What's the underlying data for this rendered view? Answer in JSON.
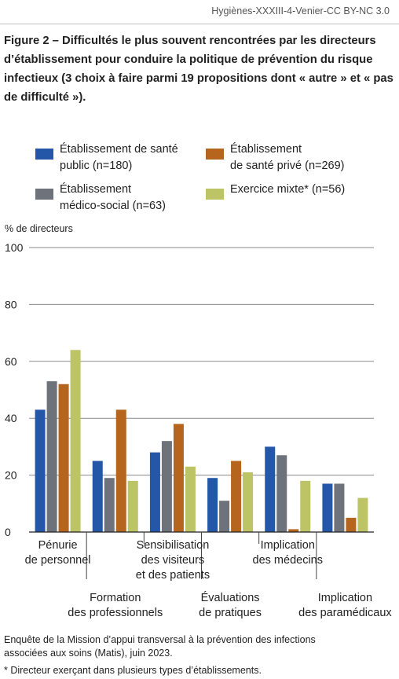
{
  "credit": "Hygiènes-XXXIII-4-Venier-CC BY-NC 3.0",
  "title": "Figure 2 – Difficultés le plus souvent rencontrées par les directeurs d’établissement pour conduire la politique de prévention du risque infectieux (3 choix à faire parmi 19 propositions dont « autre » et « pas de difficulté »).",
  "legend": [
    {
      "label": "Établissement de santé\npublic (n=180)",
      "color": "#2457a8"
    },
    {
      "label": "Établissement\nde santé privé (n=269)",
      "color": "#b5651d"
    },
    {
      "label": "Établissement\nmédico-social (n=63)",
      "color": "#6e737b"
    },
    {
      "label": "Exercice mixte* (n=56)",
      "color": "#bcc466"
    }
  ],
  "y_unit": "% de directeurs",
  "footnotes": [
    "Enquête de la Mission d’appui transversal à la prévention des infections associées aux soins (Matis), juin 2023.",
    "* Directeur exerçant dans plusieurs types d’établissements."
  ],
  "chart_data": {
    "type": "bar",
    "categories": [
      [
        "Pénurie",
        "de personnel"
      ],
      [
        "Formation",
        "des professionnels"
      ],
      [
        "Sensibilisation",
        "des visiteurs",
        "et des patients"
      ],
      [
        "Évaluations",
        "de pratiques"
      ],
      [
        "Implication",
        "des médecins"
      ],
      [
        "Implication",
        "des paramédicaux"
      ]
    ],
    "series": [
      {
        "name": "Établissement de santé public (n=180)",
        "color": "#2457a8",
        "values": [
          43,
          25,
          28,
          19,
          30,
          17
        ]
      },
      {
        "name": "Établissement médico-social (n=63)",
        "color": "#6e737b",
        "values": [
          53,
          19,
          32,
          11,
          27,
          17
        ]
      },
      {
        "name": "Établissement de santé privé (n=269)",
        "color": "#b5651d",
        "values": [
          52,
          43,
          38,
          25,
          1,
          5
        ]
      },
      {
        "name": "Exercice mixte* (n=56)",
        "color": "#bcc466",
        "values": [
          64,
          18,
          23,
          21,
          18,
          12
        ]
      }
    ],
    "ylim": [
      0,
      100
    ],
    "yticks": [
      0,
      20,
      40,
      60,
      80,
      100
    ],
    "grid": true
  }
}
